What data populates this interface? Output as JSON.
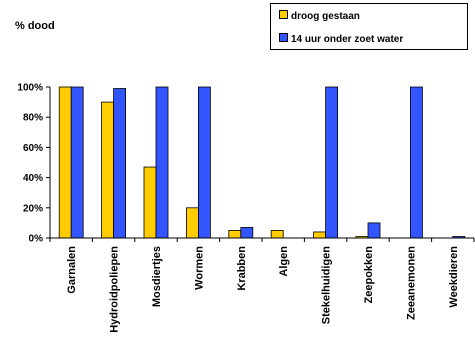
{
  "chart_data": {
    "type": "bar",
    "ylabel": "% dood",
    "xlabel": "",
    "ylim": [
      0,
      100
    ],
    "yticks": [
      0,
      20,
      40,
      60,
      80,
      100
    ],
    "ytick_format": "percent",
    "grid": false,
    "legend_position": "top-right",
    "categories": [
      "Garnalen",
      "Hydroidpoliepen",
      "Mosdiertjes",
      "Wormen",
      "Krabben",
      "Algen",
      "Stekelhuidigen",
      "Zeepokken",
      "Zeeanemonen",
      "Weekdieren"
    ],
    "series": [
      {
        "name": "droog gestaan",
        "color": "#ffcc00",
        "values": [
          100,
          90,
          47,
          20,
          5,
          5,
          4,
          1,
          0,
          0
        ]
      },
      {
        "name": "14 uur onder zoet water",
        "color": "#3355ff",
        "values": [
          100,
          99,
          100,
          100,
          7,
          0,
          100,
          10,
          100,
          1
        ]
      }
    ]
  }
}
